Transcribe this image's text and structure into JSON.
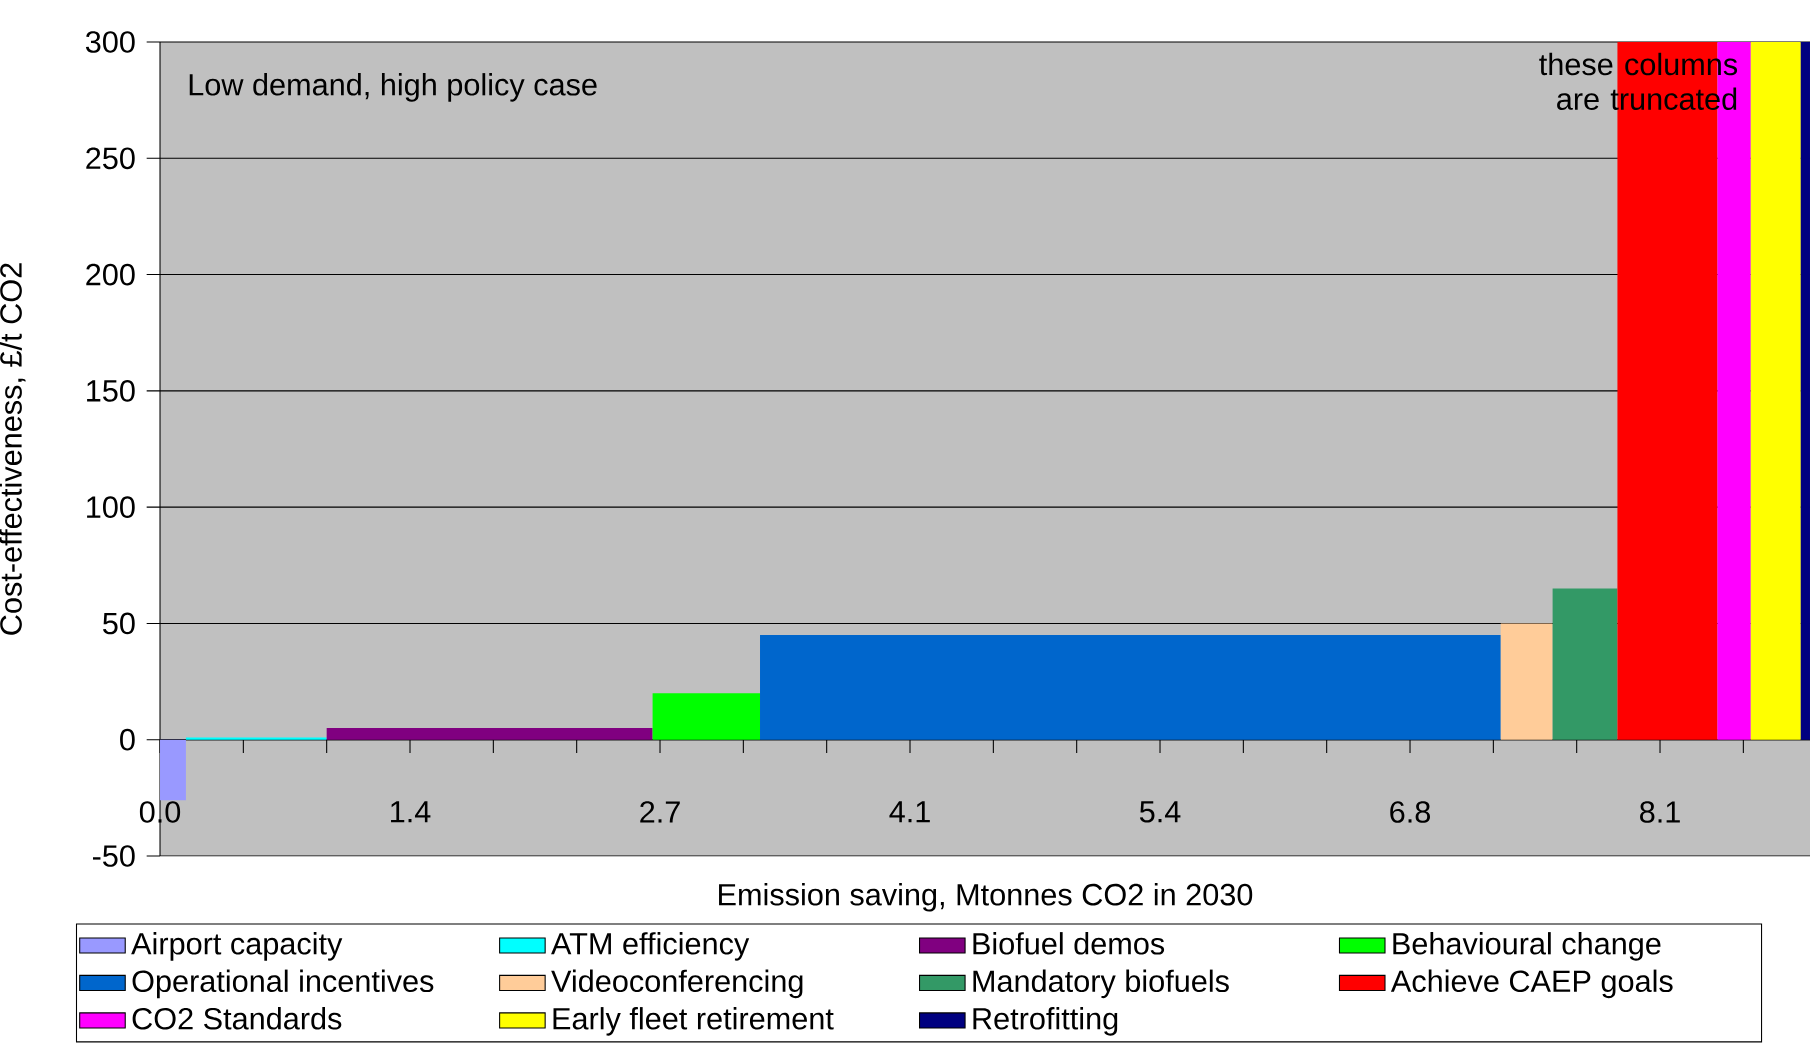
{
  "chart_data": {
    "type": "area",
    "xlabel": "Emission saving, Mtonnes CO2 in 2030",
    "ylabel": "Cost-effectiveness, £/t CO2",
    "annotations": [
      "Low demand, high policy case",
      "these columns are truncated"
    ],
    "xlim": [
      0,
      8.91
    ],
    "ylim": [
      -50,
      300
    ],
    "xticks": [
      {
        "value": 0,
        "label": "0.0"
      },
      {
        "value": 0.45,
        "label": null
      },
      {
        "value": 0.9,
        "label": null
      },
      {
        "value": 1.35,
        "label": "1.4"
      },
      {
        "value": 1.8,
        "label": null
      },
      {
        "value": 2.25,
        "label": null
      },
      {
        "value": 2.7,
        "label": "2.7"
      },
      {
        "value": 3.15,
        "label": null
      },
      {
        "value": 3.6,
        "label": null
      },
      {
        "value": 4.05,
        "label": "4.1"
      },
      {
        "value": 4.5,
        "label": null
      },
      {
        "value": 4.95,
        "label": null
      },
      {
        "value": 5.4,
        "label": "5.4"
      },
      {
        "value": 5.85,
        "label": null
      },
      {
        "value": 6.3,
        "label": null
      },
      {
        "value": 6.75,
        "label": "6.8"
      },
      {
        "value": 7.2,
        "label": null
      },
      {
        "value": 7.65,
        "label": null
      },
      {
        "value": 8.1,
        "label": "8.1"
      },
      {
        "value": 8.55,
        "label": null
      }
    ],
    "yticks": [
      -50,
      0,
      50,
      100,
      150,
      200,
      250,
      300
    ],
    "grid": "y",
    "legend": "bottom",
    "series": [
      {
        "name": "Airport capacity",
        "color": "#9999ff",
        "x": [
          0,
          0.14
        ],
        "values": [
          -26,
          -26
        ]
      },
      {
        "name": "ATM efficiency",
        "color": "#00ffff",
        "x": [
          0.14,
          0.9
        ],
        "values": [
          1,
          1
        ]
      },
      {
        "name": "Biofuel demos",
        "color": "#800080",
        "x": [
          0.9,
          2.66
        ],
        "values": [
          5,
          5
        ]
      },
      {
        "name": "Behavioural change",
        "color": "#00ff00",
        "x": [
          2.66,
          3.24
        ],
        "values": [
          20,
          20
        ]
      },
      {
        "name": "Operational incentives",
        "color": "#0066cc",
        "x": [
          3.24,
          7.24
        ],
        "values": [
          45,
          45
        ]
      },
      {
        "name": "Videoconferencing",
        "color": "#ffcc99",
        "x": [
          7.24,
          7.52
        ],
        "values": [
          50,
          50
        ]
      },
      {
        "name": "Mandatory biofuels",
        "color": "#339966",
        "x": [
          7.52,
          7.87
        ],
        "values": [
          65,
          65
        ]
      },
      {
        "name": "Achieve CAEP goals",
        "color": "#ff0000",
        "x": [
          7.87,
          8.41
        ],
        "values": [
          300,
          300
        ]
      },
      {
        "name": "CO2 Standards",
        "color": "#ff00ff",
        "x": [
          8.41,
          8.59
        ],
        "values": [
          300,
          300
        ]
      },
      {
        "name": "Early fleet retirement",
        "color": "#ffff00",
        "x": [
          8.59,
          8.86
        ],
        "values": [
          300,
          300
        ]
      },
      {
        "name": "Retrofitting",
        "color": "#000080",
        "x": [
          8.86,
          8.91
        ],
        "values": [
          300,
          300
        ]
      }
    ]
  }
}
